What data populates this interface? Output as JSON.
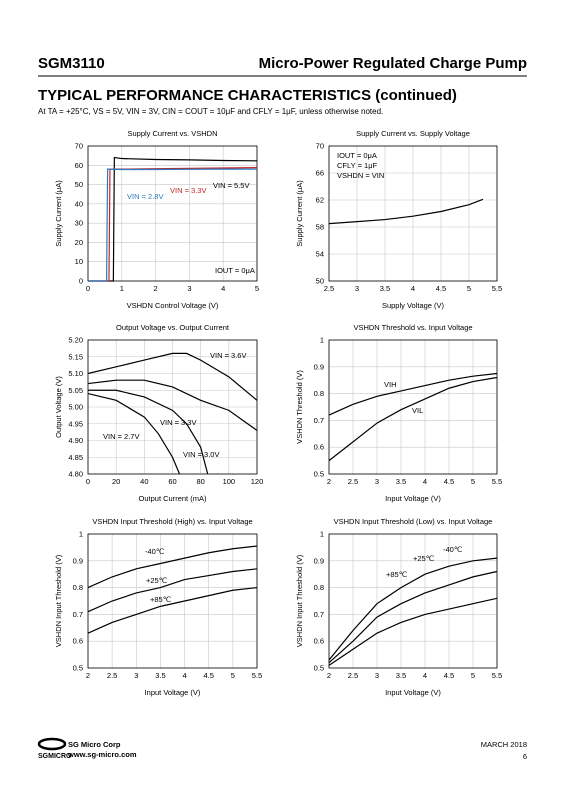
{
  "header": {
    "part": "SGM3110",
    "product": "Micro-Power Regulated Charge Pump",
    "section": "TYPICAL PERFORMANCE CHARACTERISTICS (continued)",
    "conditions": "At TA = +25°C, VS = 5V, VIN = 3V, CIN = COUT = 10μF and CFLY = 1μF, unless otherwise noted."
  },
  "chart_data": [
    {
      "type": "line",
      "title": "Supply Current vs. VSHDN",
      "xlabel": "VSHDN Control Voltage (V)",
      "ylabel": "Supply Current (μA)",
      "xlim": [
        0,
        5
      ],
      "xticks": [
        0,
        1,
        2,
        3,
        4,
        5
      ],
      "ylim": [
        0,
        70
      ],
      "yticks": [
        0,
        10,
        20,
        30,
        40,
        50,
        60,
        70
      ],
      "grid": true,
      "annotations": [
        "IOUT = 0μA"
      ],
      "series": [
        {
          "name": "VIN = 5.5V",
          "color": "#000000",
          "x": [
            0,
            0.75,
            0.78,
            1,
            2,
            3,
            4,
            5
          ],
          "values": [
            0,
            0,
            64,
            63.5,
            63,
            62.8,
            62.5,
            62.3
          ]
        },
        {
          "name": "VIN = 3.3V",
          "color": "#c0272d",
          "x": [
            0,
            0.62,
            0.65,
            1,
            2,
            3,
            4,
            5
          ],
          "values": [
            0,
            0,
            58,
            58,
            58.2,
            58.4,
            58.6,
            58.8
          ]
        },
        {
          "name": "VIN = 2.8V",
          "color": "#2a7bbf",
          "x": [
            0,
            0.55,
            0.58,
            1,
            2,
            3,
            4,
            5
          ],
          "values": [
            0,
            0,
            58,
            57.8,
            57.8,
            57.9,
            58,
            58
          ]
        }
      ]
    },
    {
      "type": "line",
      "title": "Supply Current vs. Supply Voltage",
      "xlabel": "Supply Voltage (V)",
      "ylabel": "Supply Current (μA)",
      "xlim": [
        2.5,
        5.5
      ],
      "xticks": [
        2.5,
        3,
        3.5,
        4,
        4.5,
        5,
        5.5
      ],
      "ylim": [
        50,
        70
      ],
      "yticks": [
        50,
        54,
        58,
        62,
        66,
        70
      ],
      "grid": true,
      "annotations": [
        "IOUT = 0μA",
        "CFLY = 1μF",
        "VSHDN = VIN"
      ],
      "series": [
        {
          "name": null,
          "color": "#000000",
          "x": [
            2.5,
            3,
            3.5,
            4,
            4.5,
            5,
            5.25
          ],
          "values": [
            58.5,
            58.8,
            59.1,
            59.6,
            60.3,
            61.3,
            62.1
          ]
        }
      ]
    },
    {
      "type": "line",
      "title": "Output Voltage vs. Output Current",
      "xlabel": "Output Current (mA)",
      "ylabel": "Output Voltage (V)",
      "xlim": [
        0,
        120
      ],
      "xticks": [
        0,
        20,
        40,
        60,
        80,
        100,
        120
      ],
      "ylim": [
        4.8,
        5.2
      ],
      "yticks": [
        {
          "value": 4.8,
          "label": "4.80"
        },
        4.85,
        {
          "value": 4.9,
          "label": "4.90"
        },
        4.95,
        {
          "value": 5,
          "label": "5.00"
        },
        5.05,
        {
          "value": 5.1,
          "label": "5.10"
        },
        5.15,
        {
          "value": 5.2,
          "label": "5.20"
        }
      ],
      "grid": true,
      "annotations": [],
      "series": [
        {
          "name": "VIN = 3.6V",
          "color": "#000000",
          "x": [
            0,
            20,
            40,
            60,
            70,
            80,
            100,
            120
          ],
          "values": [
            5.1,
            5.12,
            5.14,
            5.16,
            5.16,
            5.14,
            5.09,
            5.02
          ]
        },
        {
          "name": "VIN = 3.3V",
          "color": "#000000",
          "x": [
            0,
            20,
            40,
            60,
            80,
            100,
            120
          ],
          "values": [
            5.07,
            5.08,
            5.08,
            5.06,
            5.02,
            4.99,
            4.93
          ]
        },
        {
          "name": "VIN = 3.0V",
          "color": "#000000",
          "x": [
            0,
            20,
            40,
            60,
            70,
            80,
            85
          ],
          "values": [
            5.05,
            5.05,
            5.03,
            4.99,
            4.95,
            4.88,
            4.8
          ]
        },
        {
          "name": "VIN = 2.7V",
          "color": "#000000",
          "x": [
            0,
            20,
            40,
            50,
            60,
            65
          ],
          "values": [
            5.04,
            5.02,
            4.97,
            4.92,
            4.85,
            4.8
          ]
        }
      ]
    },
    {
      "type": "line",
      "title": "VSHDN Threshold vs. Input Voltage",
      "xlabel": "Input Voltage (V)",
      "ylabel": "VSHDN Threshold (V)",
      "xlim": [
        2,
        5.5
      ],
      "xticks": [
        2,
        2.5,
        3,
        3.5,
        4,
        4.5,
        5,
        5.5
      ],
      "ylim": [
        0.5,
        1
      ],
      "yticks": [
        0.5,
        0.6,
        0.7,
        0.8,
        0.9,
        1
      ],
      "grid": true,
      "annotations": [],
      "series": [
        {
          "name": "VIH",
          "color": "#000000",
          "x": [
            2,
            2.5,
            3,
            3.5,
            4,
            4.5,
            5,
            5.5
          ],
          "values": [
            0.72,
            0.76,
            0.79,
            0.81,
            0.83,
            0.85,
            0.865,
            0.875
          ]
        },
        {
          "name": "VIL",
          "color": "#000000",
          "x": [
            2,
            2.5,
            3,
            3.5,
            4,
            4.5,
            5,
            5.5
          ],
          "values": [
            0.55,
            0.62,
            0.69,
            0.74,
            0.78,
            0.82,
            0.845,
            0.86
          ]
        }
      ]
    },
    {
      "type": "line",
      "title": "VSHDN Input Threshold (High) vs. Input Voltage",
      "xlabel": "Input Voltage (V)",
      "ylabel": "VSHDN Input Threshold (V)",
      "xlim": [
        2,
        5.5
      ],
      "xticks": [
        2,
        2.5,
        3,
        3.5,
        4,
        4.5,
        5,
        5.5
      ],
      "ylim": [
        0.5,
        1
      ],
      "yticks": [
        0.5,
        0.6,
        0.7,
        0.8,
        0.9,
        1
      ],
      "grid": true,
      "annotations": [],
      "series": [
        {
          "name": "-40℃",
          "color": "#000000",
          "x": [
            2,
            2.5,
            3,
            3.5,
            4,
            4.5,
            5,
            5.5
          ],
          "values": [
            0.8,
            0.84,
            0.87,
            0.89,
            0.91,
            0.93,
            0.945,
            0.955
          ]
        },
        {
          "name": "+25℃",
          "color": "#000000",
          "x": [
            2,
            2.5,
            3,
            3.5,
            4,
            4.5,
            5,
            5.5
          ],
          "values": [
            0.71,
            0.75,
            0.78,
            0.8,
            0.83,
            0.845,
            0.86,
            0.87
          ]
        },
        {
          "name": "+85℃",
          "color": "#000000",
          "x": [
            2,
            2.5,
            3,
            3.5,
            4,
            4.5,
            5,
            5.5
          ],
          "values": [
            0.63,
            0.67,
            0.7,
            0.73,
            0.75,
            0.77,
            0.79,
            0.8
          ]
        }
      ]
    },
    {
      "type": "line",
      "title": "VSHDN Input Threshold (Low) vs. Input Voltage",
      "xlabel": "Input Voltage (V)",
      "ylabel": "VSHDN Input Threshold (V)",
      "xlim": [
        2,
        5.5
      ],
      "xticks": [
        2,
        2.5,
        3,
        3.5,
        4,
        4.5,
        5,
        5.5
      ],
      "ylim": [
        0.5,
        1
      ],
      "yticks": [
        0.5,
        0.6,
        0.7,
        0.8,
        0.9,
        1
      ],
      "grid": true,
      "annotations": [],
      "series": [
        {
          "name": "-40℃",
          "color": "#000000",
          "x": [
            2,
            2.5,
            3,
            3.5,
            4,
            4.5,
            5,
            5.5
          ],
          "values": [
            0.53,
            0.64,
            0.74,
            0.8,
            0.85,
            0.88,
            0.9,
            0.91
          ]
        },
        {
          "name": "+25℃",
          "color": "#000000",
          "x": [
            2,
            2.5,
            3,
            3.5,
            4,
            4.5,
            5,
            5.5
          ],
          "values": [
            0.52,
            0.6,
            0.69,
            0.74,
            0.78,
            0.81,
            0.84,
            0.86
          ]
        },
        {
          "name": "+85℃",
          "color": "#000000",
          "x": [
            2,
            2.5,
            3,
            3.5,
            4,
            4.5,
            5,
            5.5
          ],
          "values": [
            0.51,
            0.57,
            0.63,
            0.67,
            0.7,
            0.72,
            0.74,
            0.76
          ]
        }
      ]
    }
  ],
  "footer": {
    "company": "SG Micro Corp",
    "website": "www.sg-micro.com",
    "logo": "SGMICRO",
    "date": "MARCH 2018",
    "page": "6"
  }
}
